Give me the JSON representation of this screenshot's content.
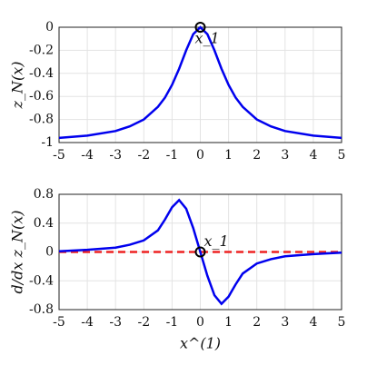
{
  "chart_data": [
    {
      "type": "line",
      "ylabel": "z_N(x)",
      "x": [
        -5,
        -4,
        -3,
        -2.5,
        -2,
        -1.5,
        -1.25,
        -1,
        -0.75,
        -0.5,
        -0.25,
        0,
        0.25,
        0.5,
        0.75,
        1,
        1.25,
        1.5,
        2,
        2.5,
        3,
        4,
        5
      ],
      "series": [
        {
          "name": "z_N",
          "color": "#0000ee",
          "values": [
            -0.96,
            -0.94,
            -0.9,
            -0.86,
            -0.8,
            -0.69,
            -0.61,
            -0.5,
            -0.36,
            -0.2,
            -0.06,
            0,
            -0.06,
            -0.2,
            -0.36,
            -0.5,
            -0.61,
            -0.69,
            -0.8,
            -0.86,
            -0.9,
            -0.94,
            -0.96
          ]
        }
      ],
      "marker": {
        "x": 0,
        "y": 0,
        "label": "x_1"
      },
      "xlim": [
        -5,
        5
      ],
      "xticks": [
        -5,
        -4,
        -3,
        -2,
        -1,
        0,
        1,
        2,
        3,
        4,
        5
      ],
      "ylim": [
        -1,
        0
      ],
      "yticks": [
        0,
        -0.2,
        -0.4,
        -0.6,
        -0.8,
        -1
      ],
      "grid": true
    },
    {
      "type": "line",
      "ylabel": "d/dx z_N(x)",
      "xlabel": "x^(1)",
      "x": [
        -5,
        -4,
        -3,
        -2.5,
        -2,
        -1.5,
        -1.25,
        -1,
        -0.75,
        -0.5,
        -0.25,
        0,
        0.25,
        0.5,
        0.75,
        1,
        1.25,
        1.5,
        2,
        2.5,
        3,
        4,
        5
      ],
      "series": [
        {
          "name": "dz_N/dx",
          "color": "#0000ee",
          "values": [
            0.01,
            0.03,
            0.06,
            0.1,
            0.16,
            0.3,
            0.45,
            0.62,
            0.72,
            0.6,
            0.33,
            0,
            -0.33,
            -0.6,
            -0.72,
            -0.62,
            -0.45,
            -0.3,
            -0.16,
            -0.1,
            -0.06,
            -0.03,
            -0.01
          ]
        }
      ],
      "reference": {
        "color": "#ee2222",
        "x": [
          -5,
          5
        ],
        "values": [
          0,
          0
        ]
      },
      "marker": {
        "x": 0,
        "y": 0,
        "label": "x_1"
      },
      "xlim": [
        -5,
        5
      ],
      "xticks": [
        -5,
        -4,
        -3,
        -2,
        -1,
        0,
        1,
        2,
        3,
        4,
        5
      ],
      "ylim": [
        -0.8,
        0.8
      ],
      "yticks": [
        0.8,
        0.4,
        0,
        -0.4,
        -0.8
      ],
      "grid": true
    }
  ]
}
